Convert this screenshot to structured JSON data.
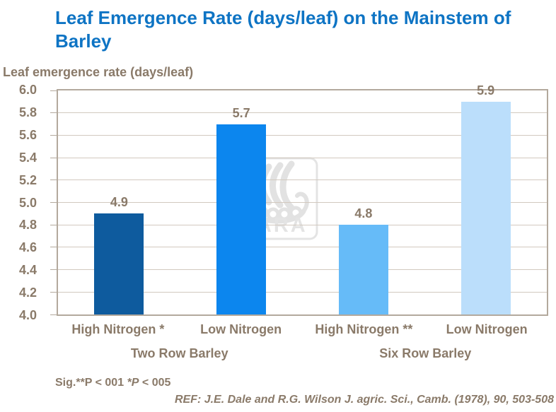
{
  "colors": {
    "title_blue": "#0e74c4",
    "text_brown": "#8a7a69",
    "plot_border": "#b3a99d",
    "gridline": "#d2c9bf",
    "watermark_gray": "#e4e4e4"
  },
  "watermark": {
    "text": "YARA",
    "icon": "viking-ship-icon"
  },
  "footer": {
    "sig_prefix": "Sig.**P < 001 ",
    "sig_italic": "*P",
    "sig_suffix": " < 005",
    "ref": "REF: J.E. Dale and R.G. Wilson J. agric. Sci., Camb. (1978), 90, 503-508"
  },
  "chart_data": {
    "type": "bar",
    "title": "Leaf Emergence Rate (days/leaf) on the Mainstem of Barley",
    "ylabel": "Leaf emergence rate (days/leaf)",
    "xlabel": "",
    "ylim": [
      4.0,
      6.0
    ],
    "ytick_step": 0.2,
    "grid": true,
    "legend": false,
    "categories": [
      "High Nitrogen *",
      "Low Nitrogen",
      "High Nitrogen **",
      "Low Nitrogen"
    ],
    "values": [
      4.9,
      5.7,
      4.8,
      5.9
    ],
    "bar_colors": [
      "#0e5b9e",
      "#0c86ee",
      "#66bbf8",
      "#bbdefb"
    ],
    "groups": [
      {
        "label": "Two Row Barley",
        "start": 0,
        "end": 1
      },
      {
        "label": "Six Row Barley",
        "start": 2,
        "end": 3
      }
    ]
  }
}
